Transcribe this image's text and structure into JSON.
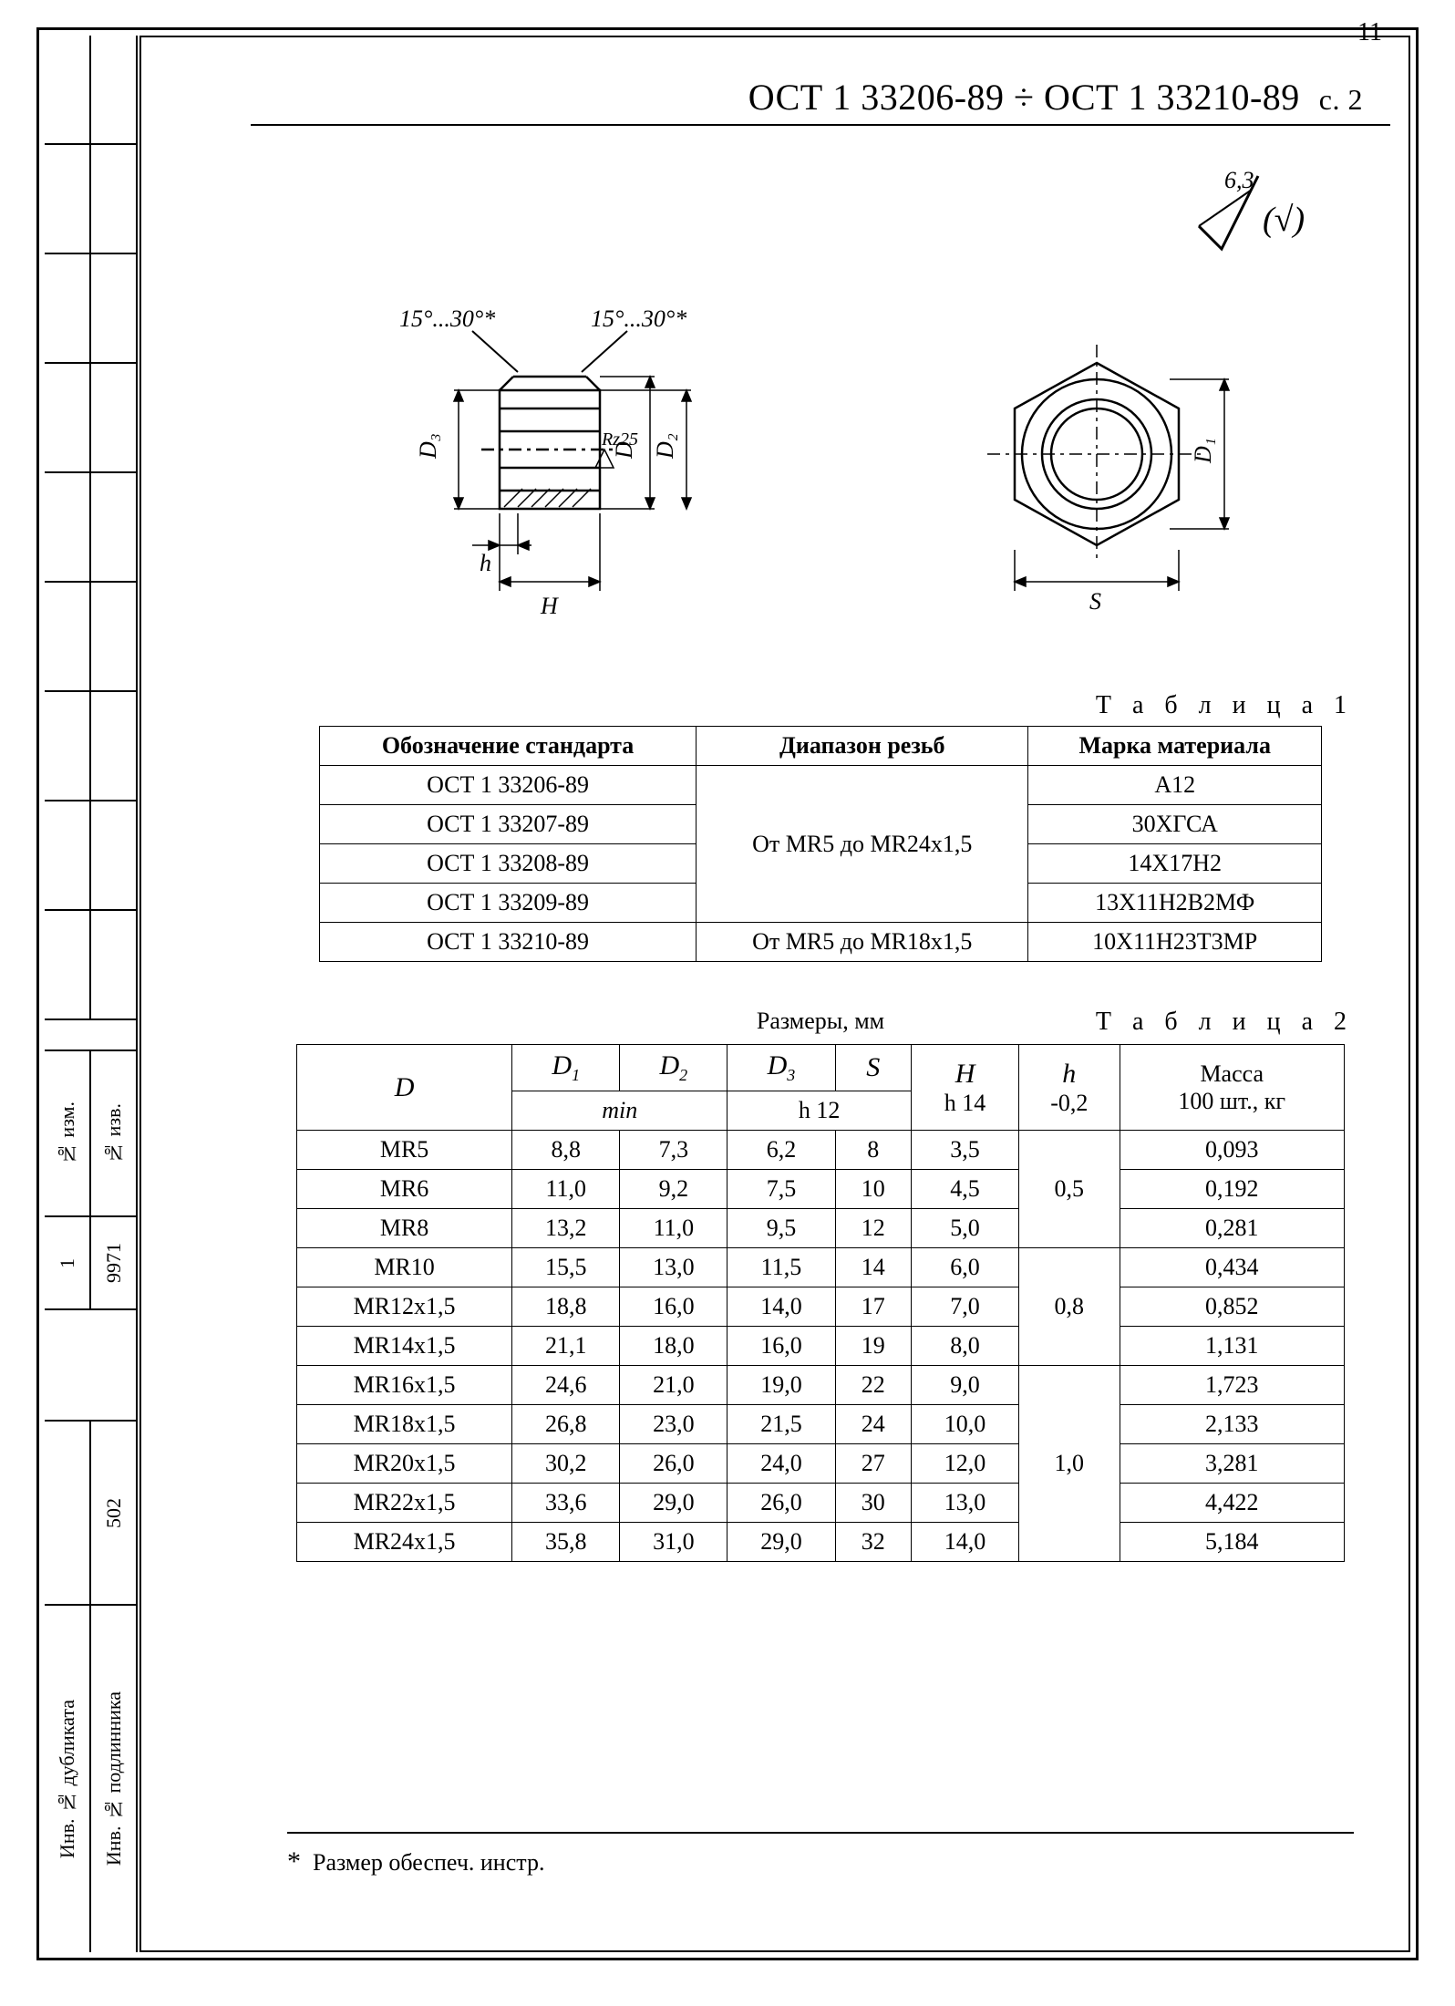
{
  "page_number_top": "11",
  "doc_title": "ОСТ 1 33206-89 ÷ ОСТ 1 33210-89",
  "doc_page": "с. 2",
  "roughness": {
    "value": "6,3",
    "symbol": "(√)"
  },
  "drawing_labels": {
    "angle_left": "15°...30°*",
    "angle_right": "15°...30°*",
    "D": "D",
    "D1": "D₁",
    "D2": "D₂",
    "D3": "D₃",
    "S": "S",
    "H": "H",
    "h": "h",
    "Rz": "Rz25"
  },
  "table1": {
    "caption": "Т а б л и ц а  1",
    "headers": [
      "Обозначение стандарта",
      "Диапазон резьб",
      "Марка материала"
    ],
    "range1": "От MR5 до MR24x1,5",
    "range2": "От MR5 до MR18x1,5",
    "rows": [
      {
        "std": "ОСТ 1 33206-89",
        "mat": "А12"
      },
      {
        "std": "ОСТ 1 33207-89",
        "mat": "30ХГСА"
      },
      {
        "std": "ОСТ 1 33208-89",
        "mat": "14Х17Н2"
      },
      {
        "std": "ОСТ 1 33209-89",
        "mat": "13Х11Н2В2МФ"
      },
      {
        "std": "ОСТ 1 33210-89",
        "mat": "10Х11Н23Т3МР"
      }
    ]
  },
  "table2": {
    "caption": "Т а б л и ц а  2",
    "sizes_caption": "Размеры, мм",
    "headers": {
      "D": "D",
      "D1": "D₁",
      "D2": "D₂",
      "D3": "D₃",
      "S": "S",
      "H": "H",
      "h": "h",
      "mass": "Масса",
      "min": "min",
      "h12": "h 12",
      "h14": "h 14",
      "h_tol": "-0,2",
      "mass_sub": "100 шт., кг"
    },
    "h_groups": [
      {
        "value": "0,5",
        "span": 3
      },
      {
        "value": "0,8",
        "span": 3
      },
      {
        "value": "1,0",
        "span": 5
      }
    ],
    "rows": [
      {
        "D": "MR5",
        "D1": "8,8",
        "D2": "7,3",
        "D3": "6,2",
        "S": "8",
        "H": "3,5",
        "mass": "0,093"
      },
      {
        "D": "MR6",
        "D1": "11,0",
        "D2": "9,2",
        "D3": "7,5",
        "S": "10",
        "H": "4,5",
        "mass": "0,192"
      },
      {
        "D": "MR8",
        "D1": "13,2",
        "D2": "11,0",
        "D3": "9,5",
        "S": "12",
        "H": "5,0",
        "mass": "0,281"
      },
      {
        "D": "MR10",
        "D1": "15,5",
        "D2": "13,0",
        "D3": "11,5",
        "S": "14",
        "H": "6,0",
        "mass": "0,434"
      },
      {
        "D": "MR12x1,5",
        "D1": "18,8",
        "D2": "16,0",
        "D3": "14,0",
        "S": "17",
        "H": "7,0",
        "mass": "0,852"
      },
      {
        "D": "MR14x1,5",
        "D1": "21,1",
        "D2": "18,0",
        "D3": "16,0",
        "S": "19",
        "H": "8,0",
        "mass": "1,131"
      },
      {
        "D": "MR16x1,5",
        "D1": "24,6",
        "D2": "21,0",
        "D3": "19,0",
        "S": "22",
        "H": "9,0",
        "mass": "1,723"
      },
      {
        "D": "MR18x1,5",
        "D1": "26,8",
        "D2": "23,0",
        "D3": "21,5",
        "S": "24",
        "H": "10,0",
        "mass": "2,133"
      },
      {
        "D": "MR20x1,5",
        "D1": "30,2",
        "D2": "26,0",
        "D3": "24,0",
        "S": "27",
        "H": "12,0",
        "mass": "3,281"
      },
      {
        "D": "MR22x1,5",
        "D1": "33,6",
        "D2": "29,0",
        "D3": "26,0",
        "S": "30",
        "H": "13,0",
        "mass": "4,422"
      },
      {
        "D": "MR24x1,5",
        "D1": "35,8",
        "D2": "31,0",
        "D3": "29,0",
        "S": "32",
        "H": "14,0",
        "mass": "5,184"
      }
    ]
  },
  "left_margin": {
    "izm_no": "№ изм.",
    "izm_val": "1",
    "izv_no": "№ изв.",
    "izv_val": "9971",
    "num_502": "502",
    "dubl": "Инв. № дубликата",
    "podl": "Инв. № подлинника"
  },
  "footnote": {
    "mark": "*",
    "text": "Размер обеспеч. инстр."
  }
}
